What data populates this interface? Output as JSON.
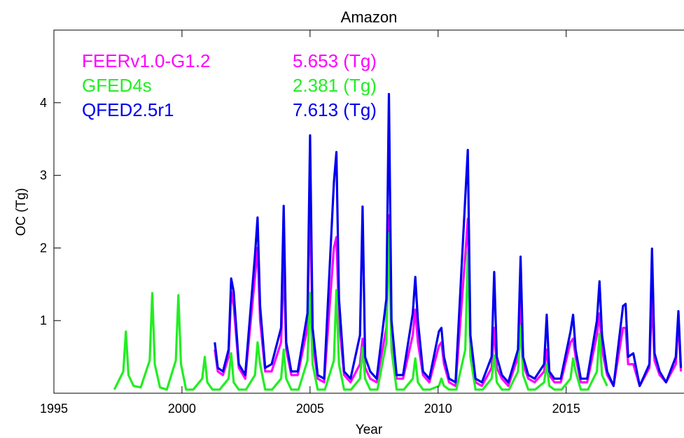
{
  "chart_data": {
    "type": "line",
    "title": "Amazon",
    "x_label": "Year",
    "y_label": "OC (Tg)",
    "xlim": [
      1995,
      2019.6
    ],
    "xticks": [
      1995,
      2000,
      2005,
      2010,
      2015
    ],
    "ylim": [
      0,
      5
    ],
    "yticks": [
      1,
      2,
      3,
      4
    ],
    "series": [
      {
        "name": "FEERv1.0-G1.2",
        "total": "5.653 (Tg)",
        "color": "#ff00ff",
        "x": [
          2001.28,
          2001.4,
          2001.6,
          2001.82,
          2001.92,
          2002.02,
          2002.22,
          2002.47,
          2002.85,
          2002.95,
          2003.05,
          2003.25,
          2003.5,
          2003.87,
          2003.97,
          2004.07,
          2004.27,
          2004.52,
          2004.9,
          2005.0,
          2005.1,
          2005.3,
          2005.55,
          2005.93,
          2006.03,
          2006.13,
          2006.33,
          2006.58,
          2006.95,
          2007.05,
          2007.15,
          2007.35,
          2007.6,
          2007.98,
          2008.08,
          2008.18,
          2008.38,
          2008.63,
          2009.01,
          2009.11,
          2009.21,
          2009.41,
          2009.66,
          2010.03,
          2010.13,
          2010.23,
          2010.43,
          2010.68,
          2011.06,
          2011.16,
          2011.26,
          2011.46,
          2011.71,
          2012.09,
          2012.19,
          2012.29,
          2012.49,
          2012.74,
          2013.12,
          2013.22,
          2013.32,
          2013.52,
          2013.77,
          2014.14,
          2014.24,
          2014.34,
          2014.54,
          2014.79,
          2015.17,
          2015.27,
          2015.37,
          2015.57,
          2015.82,
          2016.2,
          2016.3,
          2016.4,
          2016.6,
          2016.85,
          2017.22,
          2017.32,
          2017.42,
          2017.62,
          2017.87,
          2018.25,
          2018.35,
          2018.45,
          2018.65,
          2018.9,
          2019.28,
          2019.38,
          2019.48
        ],
        "values": [
          0.6,
          0.3,
          0.25,
          0.5,
          1.4,
          1.2,
          0.35,
          0.2,
          1.6,
          2.0,
          1.0,
          0.3,
          0.3,
          0.7,
          1.8,
          0.6,
          0.25,
          0.25,
          0.9,
          2.8,
          0.7,
          0.2,
          0.15,
          2.0,
          2.15,
          1.0,
          0.25,
          0.15,
          0.4,
          0.75,
          0.35,
          0.2,
          0.15,
          0.9,
          2.45,
          0.7,
          0.2,
          0.2,
          0.8,
          1.15,
          0.7,
          0.25,
          0.15,
          0.65,
          0.7,
          0.4,
          0.15,
          0.1,
          1.9,
          2.4,
          0.6,
          0.15,
          0.1,
          0.35,
          0.9,
          0.35,
          0.2,
          0.1,
          0.5,
          1.3,
          0.4,
          0.2,
          0.15,
          0.3,
          0.6,
          0.25,
          0.15,
          0.15,
          0.7,
          0.75,
          0.5,
          0.15,
          0.15,
          0.8,
          1.1,
          0.6,
          0.25,
          0.1,
          0.9,
          0.9,
          0.4,
          0.4,
          0.1,
          0.35,
          1.3,
          0.45,
          0.25,
          0.15,
          0.4,
          1.0,
          0.3
        ]
      },
      {
        "name": "GFED4s",
        "total": "2.381 (Tg)",
        "color": "#22ee22",
        "x": [
          1997.36,
          1997.71,
          1997.81,
          1997.91,
          1998.11,
          1998.39,
          1998.74,
          1998.84,
          1998.94,
          1999.14,
          1999.41,
          1999.76,
          1999.86,
          1999.96,
          2000.16,
          2000.44,
          2000.79,
          2000.89,
          2000.99,
          2001.19,
          2001.47,
          2001.82,
          2001.92,
          2002.02,
          2002.22,
          2002.5,
          2002.85,
          2002.95,
          2003.05,
          2003.25,
          2003.52,
          2003.87,
          2003.97,
          2004.07,
          2004.27,
          2004.55,
          2004.9,
          2005.0,
          2005.1,
          2005.3,
          2005.58,
          2005.93,
          2006.03,
          2006.13,
          2006.33,
          2006.6,
          2006.95,
          2007.05,
          2007.15,
          2007.35,
          2007.63,
          2007.98,
          2008.08,
          2008.18,
          2008.38,
          2008.66,
          2009.01,
          2009.11,
          2009.21,
          2009.41,
          2009.68,
          2010.03,
          2010.13,
          2010.23,
          2010.43,
          2010.71,
          2011.06,
          2011.16,
          2011.26,
          2011.46,
          2011.74,
          2012.09,
          2012.19,
          2012.29,
          2012.49,
          2012.77,
          2013.12,
          2013.22,
          2013.32,
          2013.52,
          2013.79,
          2014.14,
          2014.24,
          2014.34,
          2014.54,
          2014.82,
          2015.17,
          2015.27,
          2015.37,
          2015.57,
          2015.85,
          2016.2,
          2016.3,
          2016.4,
          2016.6
        ],
        "values": [
          0.05,
          0.3,
          0.85,
          0.25,
          0.1,
          0.08,
          0.45,
          1.38,
          0.4,
          0.08,
          0.05,
          0.45,
          1.35,
          0.4,
          0.05,
          0.05,
          0.2,
          0.5,
          0.15,
          0.05,
          0.05,
          0.2,
          0.55,
          0.15,
          0.05,
          0.05,
          0.25,
          0.7,
          0.4,
          0.05,
          0.05,
          0.2,
          0.6,
          0.2,
          0.05,
          0.05,
          0.45,
          1.38,
          0.4,
          0.05,
          0.05,
          0.45,
          1.42,
          0.4,
          0.05,
          0.05,
          0.2,
          0.63,
          0.2,
          0.05,
          0.05,
          0.7,
          2.2,
          0.6,
          0.05,
          0.05,
          0.2,
          0.48,
          0.15,
          0.05,
          0.05,
          0.1,
          0.2,
          0.1,
          0.05,
          0.05,
          0.6,
          1.95,
          0.5,
          0.05,
          0.05,
          0.2,
          0.52,
          0.15,
          0.05,
          0.05,
          0.3,
          0.93,
          0.25,
          0.05,
          0.05,
          0.15,
          0.4,
          0.1,
          0.05,
          0.05,
          0.2,
          0.48,
          0.3,
          0.05,
          0.05,
          0.3,
          0.82,
          0.25,
          0.1
        ]
      },
      {
        "name": "QFED2.5r1",
        "total": "7.613 (Tg)",
        "color": "#0000ee",
        "x": [
          2001.28,
          2001.4,
          2001.6,
          2001.82,
          2001.92,
          2002.02,
          2002.22,
          2002.47,
          2002.85,
          2002.95,
          2003.05,
          2003.25,
          2003.5,
          2003.87,
          2003.97,
          2004.07,
          2004.27,
          2004.52,
          2004.9,
          2005.0,
          2005.1,
          2005.3,
          2005.55,
          2005.93,
          2006.03,
          2006.13,
          2006.33,
          2006.58,
          2006.95,
          2007.05,
          2007.15,
          2007.35,
          2007.6,
          2007.98,
          2008.08,
          2008.18,
          2008.38,
          2008.63,
          2009.01,
          2009.11,
          2009.21,
          2009.41,
          2009.66,
          2010.03,
          2010.13,
          2010.23,
          2010.43,
          2010.68,
          2011.06,
          2011.16,
          2011.26,
          2011.46,
          2011.71,
          2012.09,
          2012.19,
          2012.29,
          2012.49,
          2012.74,
          2013.12,
          2013.22,
          2013.32,
          2013.52,
          2013.77,
          2014.14,
          2014.24,
          2014.34,
          2014.54,
          2014.79,
          2015.17,
          2015.27,
          2015.37,
          2015.57,
          2015.82,
          2016.2,
          2016.3,
          2016.4,
          2016.6,
          2016.85,
          2017.22,
          2017.32,
          2017.42,
          2017.62,
          2017.87,
          2018.25,
          2018.35,
          2018.45,
          2018.65,
          2018.9,
          2019.28,
          2019.38,
          2019.48
        ],
        "values": [
          0.7,
          0.35,
          0.3,
          0.6,
          1.58,
          1.4,
          0.4,
          0.25,
          1.9,
          2.42,
          1.2,
          0.35,
          0.4,
          0.9,
          2.58,
          0.7,
          0.3,
          0.3,
          1.1,
          3.55,
          0.9,
          0.25,
          0.2,
          2.9,
          3.32,
          1.3,
          0.3,
          0.2,
          0.8,
          2.57,
          0.5,
          0.3,
          0.2,
          1.3,
          4.12,
          1.0,
          0.25,
          0.25,
          1.1,
          1.6,
          1.0,
          0.3,
          0.2,
          0.85,
          0.9,
          0.5,
          0.2,
          0.15,
          2.7,
          3.35,
          0.8,
          0.2,
          0.15,
          0.5,
          1.67,
          0.5,
          0.25,
          0.15,
          0.6,
          1.88,
          0.5,
          0.25,
          0.2,
          0.4,
          1.08,
          0.3,
          0.2,
          0.2,
          0.85,
          1.08,
          0.6,
          0.2,
          0.2,
          1.0,
          1.54,
          0.8,
          0.3,
          0.1,
          1.2,
          1.23,
          0.5,
          0.55,
          0.1,
          0.4,
          1.99,
          0.55,
          0.3,
          0.15,
          0.5,
          1.13,
          0.35
        ]
      }
    ]
  }
}
